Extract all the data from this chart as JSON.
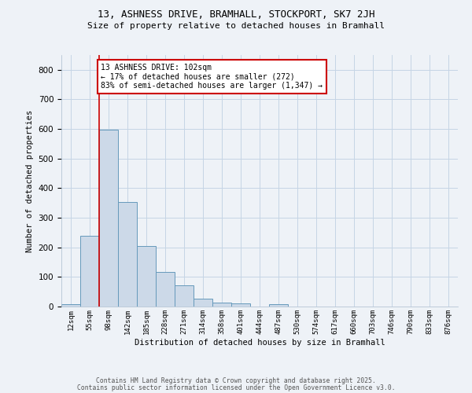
{
  "title1": "13, ASHNESS DRIVE, BRAMHALL, STOCKPORT, SK7 2JH",
  "title2": "Size of property relative to detached houses in Bramhall",
  "xlabel": "Distribution of detached houses by size in Bramhall",
  "ylabel": "Number of detached properties",
  "bin_labels": [
    "12sqm",
    "55sqm",
    "98sqm",
    "142sqm",
    "185sqm",
    "228sqm",
    "271sqm",
    "314sqm",
    "358sqm",
    "401sqm",
    "444sqm",
    "487sqm",
    "530sqm",
    "574sqm",
    "617sqm",
    "660sqm",
    "703sqm",
    "746sqm",
    "790sqm",
    "833sqm",
    "876sqm"
  ],
  "bar_values": [
    8,
    238,
    597,
    352,
    205,
    117,
    71,
    27,
    14,
    10,
    0,
    8,
    0,
    0,
    0,
    0,
    0,
    0,
    0,
    0,
    0
  ],
  "bar_color": "#ccd9e8",
  "bar_edge_color": "#6699bb",
  "vline_x_index": 2,
  "vline_color": "#cc0000",
  "annotation_text": "13 ASHNESS DRIVE: 102sqm\n← 17% of detached houses are smaller (272)\n83% of semi-detached houses are larger (1,347) →",
  "annotation_box_color": "white",
  "annotation_box_edge": "#cc0000",
  "ylim": [
    0,
    850
  ],
  "yticks": [
    0,
    100,
    200,
    300,
    400,
    500,
    600,
    700,
    800
  ],
  "grid_color": "#c5d5e5",
  "background_color": "#eef2f7",
  "footer1": "Contains HM Land Registry data © Crown copyright and database right 2025.",
  "footer2": "Contains public sector information licensed under the Open Government Licence v3.0."
}
